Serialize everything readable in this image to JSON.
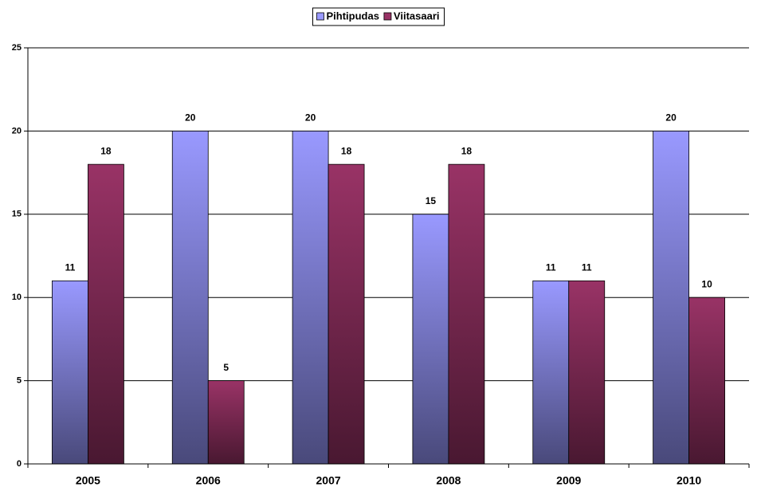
{
  "chart_data": {
    "type": "bar",
    "categories": [
      "2005",
      "2006",
      "2007",
      "2008",
      "2009",
      "2010"
    ],
    "series": [
      {
        "name": "Pihtipudas",
        "color": "#9999ff",
        "values": [
          11,
          20,
          20,
          15,
          11,
          20
        ]
      },
      {
        "name": "Viitasaari",
        "color": "#993366",
        "values": [
          18,
          5,
          18,
          18,
          11,
          10
        ]
      }
    ],
    "ylim": [
      0,
      25
    ],
    "yticks": [
      0,
      5,
      10,
      15,
      20,
      25
    ],
    "grid": true,
    "legend": "top"
  }
}
